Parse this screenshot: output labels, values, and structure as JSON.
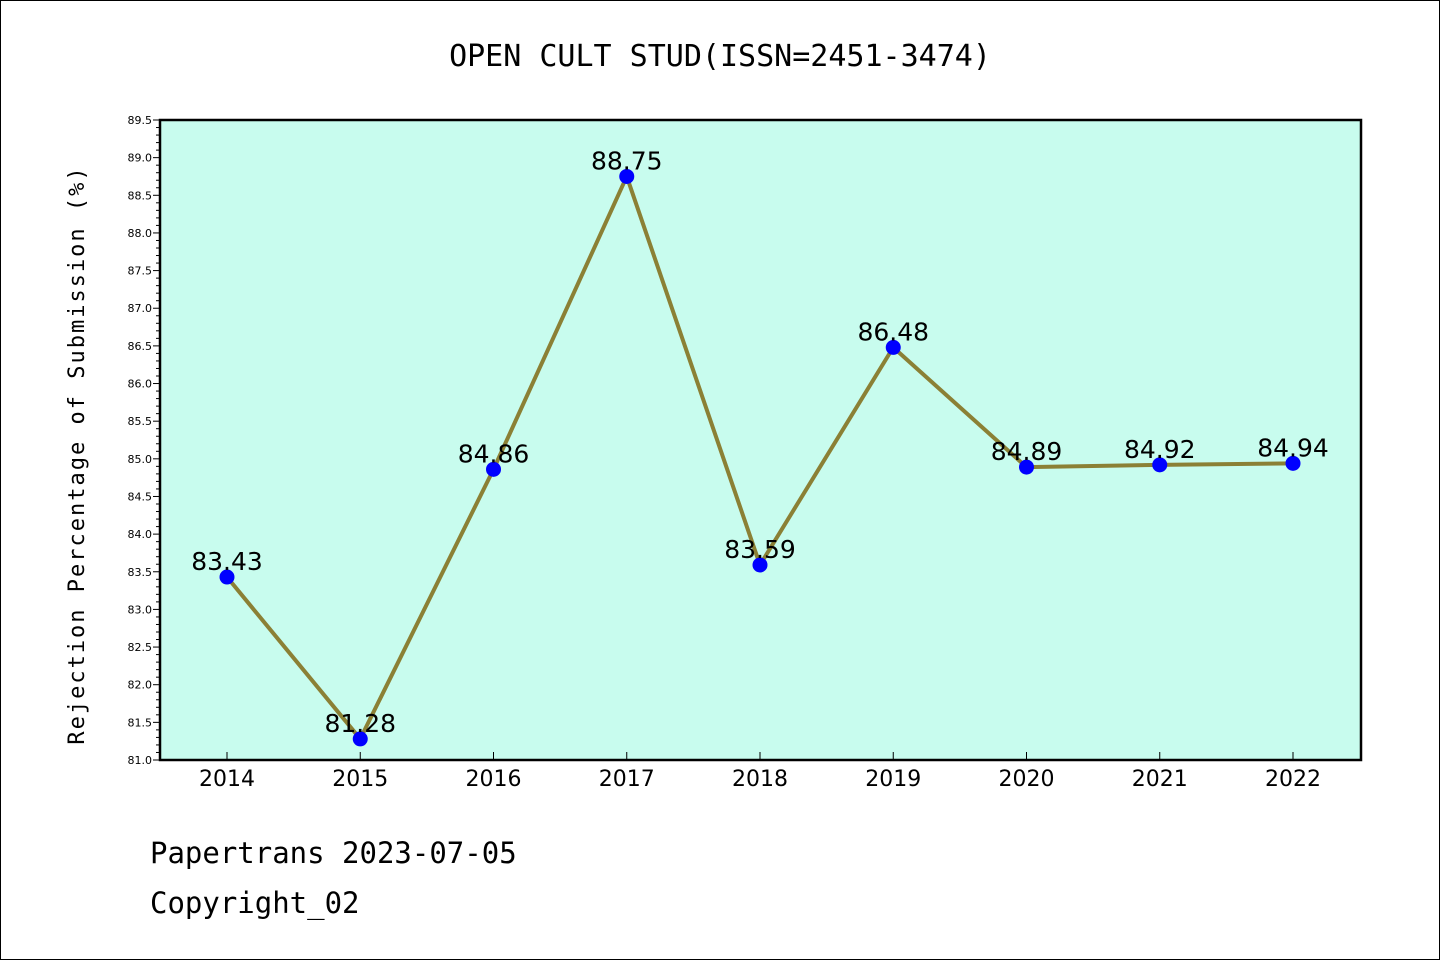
{
  "colors": {
    "plot_background": "#c8fcee",
    "line": "#8b8035",
    "marker": "#0000ff",
    "axis": "#000000"
  },
  "footer": {
    "line1": "Papertrans 2023-07-05",
    "line2": "Copyright_02"
  },
  "chart_data": {
    "type": "line",
    "title": "OPEN CULT STUD(ISSN=2451-3474)",
    "xlabel": "",
    "ylabel": "Rejection Percentage of Submission (%)",
    "categories": [
      "2014",
      "2015",
      "2016",
      "2017",
      "2018",
      "2019",
      "2020",
      "2021",
      "2022"
    ],
    "series": [
      {
        "values": [
          83.43,
          81.28,
          84.86,
          88.75,
          83.59,
          86.48,
          84.89,
          84.92,
          84.94
        ],
        "data_labels": [
          "83.43",
          "81.28",
          "84.86",
          "88.75",
          "83.59",
          "86.48",
          "84.89",
          "84.92",
          "84.94"
        ]
      }
    ],
    "ylim": [
      81.0,
      89.5
    ],
    "yticks": [
      "81.0",
      "81.5",
      "82.0",
      "82.5",
      "83.0",
      "83.5",
      "84.0",
      "84.5",
      "85.0",
      "85.5",
      "86.0",
      "86.5",
      "87.0",
      "87.5",
      "88.0",
      "88.5",
      "89.0",
      "89.5"
    ],
    "grid": false,
    "legend": "none",
    "markers": "circle"
  }
}
